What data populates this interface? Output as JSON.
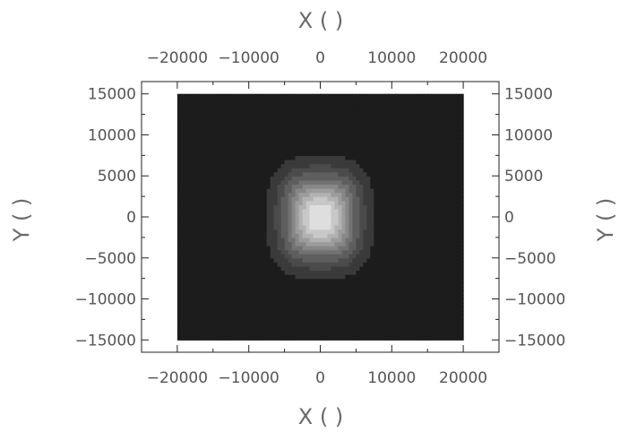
{
  "chart_data": {
    "type": "heatmap",
    "title": "",
    "xlabel": "X (   )",
    "ylabel": "Y (   )",
    "x_ticks": [
      -20000,
      -10000,
      0,
      10000,
      20000
    ],
    "x_tick_labels": [
      "−20000",
      "−10000",
      "0",
      "10000",
      "20000"
    ],
    "y_ticks": [
      15000,
      10000,
      5000,
      0,
      -5000,
      -10000,
      -15000
    ],
    "y_tick_labels": [
      "15000",
      "10000",
      "5000",
      "0",
      "−5000",
      "−10000",
      "−15000"
    ],
    "xlim": [
      -25000,
      25000
    ],
    "ylim": [
      -16500,
      16500
    ],
    "data_extent": {
      "x": [
        -20000,
        20000
      ],
      "y": [
        -15000,
        15000
      ]
    },
    "field_center": [
      0,
      0
    ],
    "field_width": 3500,
    "colormap": "grayscale",
    "levels": [
      "#1c1c1c",
      "#3a3a3a",
      "#4b4b4b",
      "#5e5e5e",
      "#727272",
      "#878787",
      "#9c9c9c",
      "#b2b2b2",
      "#c8c8c8",
      "#dedede"
    ],
    "grid": false,
    "legend": "none"
  }
}
